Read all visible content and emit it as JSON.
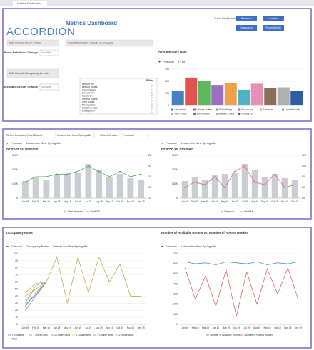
{
  "tab": "Metrics Dashboard",
  "logo": "ACCORDION",
  "title": "Metrics Dashboard",
  "buttons": [
    "Go to Dashboard",
    "Revenue",
    "Location",
    "Occupancy",
    "Room Details"
  ],
  "room_rate": {
    "heading": "Edit Overall Room Rates",
    "label": "Room Rate Price Change",
    "value": "10.00%"
  },
  "occupancy": {
    "heading": "Edit Overall Occupancy Levels",
    "label": "Occupancy Level Change",
    "value": "10.00%"
  },
  "brands": {
    "heading": "Select Brands to Include in Analysis",
    "filter": "Filter",
    "items": [
      "Leisure Inn",
      "Leisure Suites",
      "Solent Ways",
      "Snooze Inn",
      "Sandman",
      "Umbria Hotels",
      "Rest Suites",
      "Metropolitan",
      "Balgam Lodge",
      "Fireway Inn"
    ]
  },
  "selectors": {
    "location_label": "Select Location/Hotel Brand:",
    "location": "Leisure Inn New Springville",
    "version_label": "Select Version:",
    "version": "Forecast"
  },
  "chart_data": [
    {
      "type": "bar",
      "title": "Average Daily Rate",
      "filters": [
        "Forecast",
        "FY19"
      ],
      "categories": [
        "Leisure Inn",
        "Leisure Suites",
        "Solent Ways",
        "Snooze Inn",
        "Sandman",
        "Umbria Hotels",
        "Rest Suites",
        "Metropolitan",
        "Balgam Lodge",
        "Fireway Inn"
      ],
      "values": [
        120,
        230,
        200,
        170,
        185,
        130,
        180,
        145,
        150,
        120
      ],
      "colors": [
        "#4a7fc1",
        "#e0534f",
        "#5cb85c",
        "#9b6fc2",
        "#f0a04b",
        "#4bb3c4",
        "#e88fb4",
        "#8c6d5a",
        "#b0b0b0",
        "#2f5f9e"
      ],
      "ylim": [
        0,
        300
      ],
      "yticks": [
        0,
        100,
        200,
        300
      ],
      "grid": true
    },
    {
      "type": "combo",
      "title": "RevPOR vs. Revenue",
      "filters": [
        "Forecast",
        "Leisure Inn New Springville"
      ],
      "categories": [
        "Jan 19",
        "Feb 19",
        "Mar 19",
        "Apr 19",
        "May 19",
        "Jun 19",
        "Jul 19",
        "Aug 19",
        "Sep 19",
        "Oct 19",
        "Nov 19",
        "Dec 19"
      ],
      "series": [
        {
          "name": "Total Revenue",
          "color": "#c9ced4",
          "values": [
            120000,
            150000,
            130000,
            160000,
            170000,
            180000,
            240000,
            200000,
            150000,
            170000,
            140000,
            130000
          ]
        },
        {
          "name": "RevPOR",
          "color": "#3a9a3a",
          "axis": "y2",
          "values": [
            17,
            18,
            18,
            18.5,
            18.5,
            19,
            20,
            19,
            18,
            19,
            18,
            18.5
          ]
        }
      ],
      "ylim": [
        0,
        300000
      ],
      "yticks": [
        0,
        {
          "value": 100000,
          "label": "100K"
        },
        {
          "value": 200000,
          "label": "200K"
        },
        {
          "value": 300000,
          "label": "300K"
        }
      ],
      "y2lim": [
        14,
        22
      ],
      "y2ticks": [
        14,
        16,
        18,
        20,
        22
      ],
      "grid": true
    },
    {
      "type": "combo",
      "title": "RevPAR vs. Revenue",
      "filters": [
        "Forecast",
        "Leisure Inn New Springville"
      ],
      "categories": [
        "Jan 19",
        "Feb 19",
        "Mar 19",
        "Apr 19",
        "May 19",
        "Jun 19",
        "Jul 19",
        "Aug 19",
        "Sep 19",
        "Oct 19",
        "Nov 19",
        "Dec 19"
      ],
      "series": [
        {
          "name": "Revenue",
          "color": "#c9ced4",
          "values": [
            120000,
            150000,
            130000,
            160000,
            170000,
            180000,
            240000,
            200000,
            150000,
            170000,
            140000,
            130000
          ]
        },
        {
          "name": "RevPAR",
          "color": "#d9534f",
          "axis": "y2",
          "values": [
            60,
            70,
            65,
            80,
            60,
            90,
            100,
            70,
            65,
            85,
            60,
            65
          ]
        }
      ],
      "ylim": [
        0,
        300000
      ],
      "yticks": [
        0,
        {
          "value": 100000,
          "label": "100K"
        },
        {
          "value": 200000,
          "label": "200K"
        },
        {
          "value": 300000,
          "label": "300K"
        }
      ],
      "y2lim": [
        40,
        120
      ],
      "y2ticks": [
        40,
        60,
        80,
        100,
        120
      ],
      "grid": true
    },
    {
      "type": "line",
      "title": "Occupancy Rates",
      "filters": [
        "Forecast",
        "Occupancy Rates",
        "Leisure Inn New Springville"
      ],
      "categories": [
        "Jan 19",
        "Feb 19",
        "Mar 19",
        "Apr 19",
        "May 19",
        "Jun 19",
        "Jul 19",
        "Aug 19",
        "Sep 19",
        "Oct 19",
        "Nov 19",
        "Dec 19"
      ],
      "series": [
        {
          "name": "1 King Bed",
          "color": "#4a7fc1",
          "values": [
            20,
            40,
            60,
            null,
            null,
            null,
            null,
            null,
            null,
            null,
            null,
            null
          ]
        },
        {
          "name": "1 Queen Bed",
          "color": "#4bb3c4",
          "values": [
            30,
            55,
            60,
            null,
            null,
            null,
            null,
            null,
            null,
            null,
            null,
            null
          ]
        },
        {
          "name": "2 Queen Beds",
          "color": "#5cb85c",
          "values": [
            25,
            45,
            60,
            null,
            null,
            null,
            null,
            null,
            null,
            null,
            null,
            null
          ]
        },
        {
          "name": "1 Double Bed",
          "color": "#e8d44d",
          "values": [
            35,
            50,
            60,
            null,
            null,
            null,
            null,
            null,
            null,
            null,
            null,
            null
          ]
        },
        {
          "name": "2 Double Beds",
          "color": "#9b6fc2",
          "values": [
            28,
            42,
            60,
            null,
            null,
            null,
            null,
            null,
            null,
            null,
            null,
            null
          ]
        },
        {
          "name": "2 Single Beds",
          "color": "#f0a04b",
          "values": [
            45,
            58,
            60,
            null,
            null,
            null,
            null,
            null,
            null,
            null,
            null,
            null
          ]
        },
        {
          "name": "Total",
          "color": "#b5a642",
          "values": [
            40,
            50,
            60,
            95,
            30,
            95,
            45,
            95,
            60,
            85,
            40,
            40
          ]
        }
      ],
      "ylim": [
        0,
        100
      ],
      "yticks": [
        0,
        10,
        20,
        30,
        40,
        50,
        60,
        70,
        80,
        90,
        100
      ],
      "grid": true
    },
    {
      "type": "line",
      "title": "Number of Available Rooms vs. Number of Rooms Booked",
      "filters": [
        "Forecast",
        "Leisure Inn New Springville"
      ],
      "categories": [
        "Jan 19",
        "Feb 19",
        "Mar 19",
        "Apr 19",
        "May 19",
        "Jun 19",
        "Jul 19",
        "Aug 19",
        "Sep 19",
        "Oct 19",
        "Nov 19",
        "Dec 19"
      ],
      "series": [
        {
          "name": "Number of Available Rooms",
          "color": "#4a7fc1",
          "values": [
            620,
            600,
            610,
            590,
            620,
            610,
            600,
            620,
            590,
            610,
            600,
            620
          ]
        },
        {
          "name": "Number of Rooms Booked",
          "color": "#d9534f",
          "values": [
            560,
            250,
            480,
            180,
            540,
            80,
            520,
            200,
            550,
            300,
            560,
            250
          ]
        }
      ],
      "ylim": [
        0,
        700
      ],
      "yticks": [
        0,
        100,
        200,
        300,
        400,
        500,
        600,
        700
      ],
      "grid": true
    }
  ]
}
